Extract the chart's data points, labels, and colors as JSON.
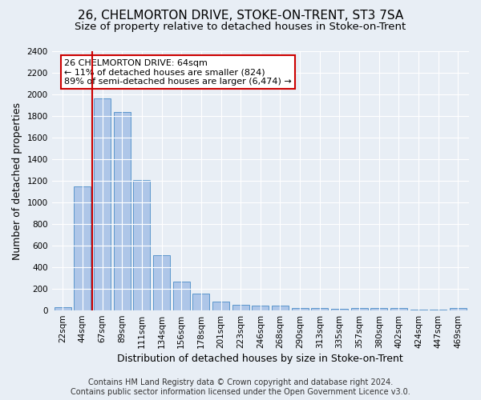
{
  "title1": "26, CHELMORTON DRIVE, STOKE-ON-TRENT, ST3 7SA",
  "title2": "Size of property relative to detached houses in Stoke-on-Trent",
  "xlabel": "Distribution of detached houses by size in Stoke-on-Trent",
  "ylabel": "Number of detached properties",
  "categories": [
    "22sqm",
    "44sqm",
    "67sqm",
    "89sqm",
    "111sqm",
    "134sqm",
    "156sqm",
    "178sqm",
    "201sqm",
    "223sqm",
    "246sqm",
    "268sqm",
    "290sqm",
    "313sqm",
    "335sqm",
    "357sqm",
    "380sqm",
    "402sqm",
    "424sqm",
    "447sqm",
    "469sqm"
  ],
  "values": [
    30,
    1150,
    1960,
    1840,
    1210,
    515,
    265,
    155,
    80,
    50,
    45,
    42,
    20,
    20,
    15,
    20,
    20,
    20,
    5,
    5,
    20
  ],
  "bar_color": "#aec6e8",
  "bar_edge_color": "#5b96cc",
  "red_line_x": 2.0,
  "annotation_text": "26 CHELMORTON DRIVE: 64sqm\n← 11% of detached houses are smaller (824)\n89% of semi-detached houses are larger (6,474) →",
  "annotation_box_color": "#ffffff",
  "annotation_box_edge": "#cc0000",
  "footer1": "Contains HM Land Registry data © Crown copyright and database right 2024.",
  "footer2": "Contains public sector information licensed under the Open Government Licence v3.0.",
  "ylim": [
    0,
    2400
  ],
  "yticks": [
    0,
    200,
    400,
    600,
    800,
    1000,
    1200,
    1400,
    1600,
    1800,
    2000,
    2200,
    2400
  ],
  "bg_color": "#e8eef5",
  "plot_bg_color": "#e8eef5",
  "grid_color": "#ffffff",
  "title1_fontsize": 11,
  "title2_fontsize": 9.5,
  "xlabel_fontsize": 9,
  "ylabel_fontsize": 9,
  "tick_fontsize": 7.5,
  "annotation_fontsize": 8,
  "footer_fontsize": 7
}
